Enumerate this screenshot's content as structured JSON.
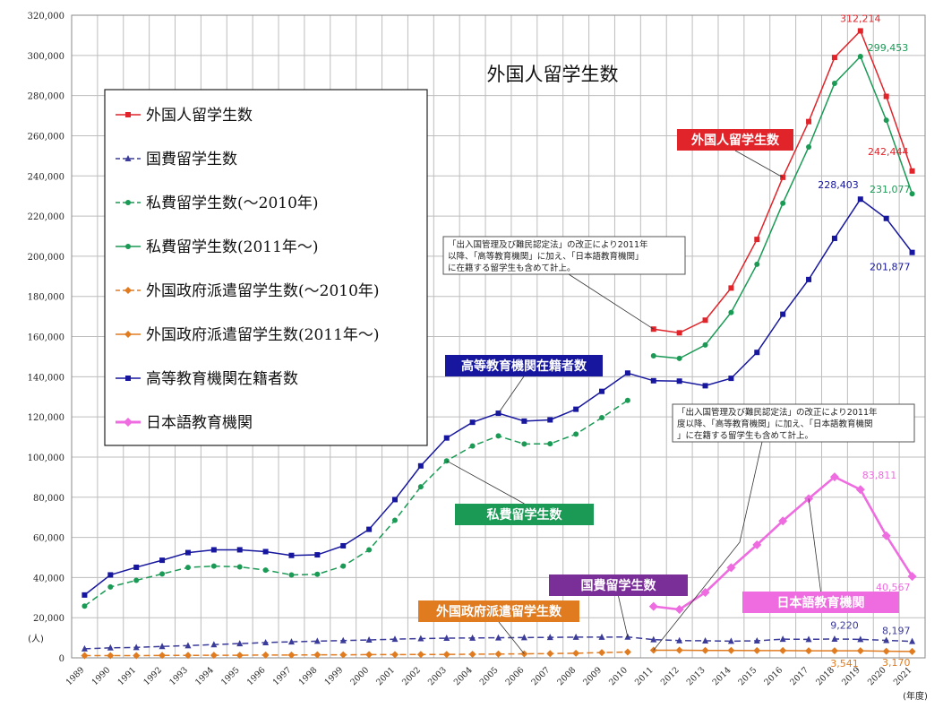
{
  "chart_data": {
    "type": "line",
    "title": "外国人留学生数",
    "y_unit_label": "(人)",
    "x_unit_label": "(年度)",
    "ylim": [
      0,
      320000
    ],
    "yticks": [
      0,
      20000,
      40000,
      60000,
      80000,
      100000,
      120000,
      140000,
      160000,
      180000,
      200000,
      220000,
      240000,
      260000,
      280000,
      300000,
      320000
    ],
    "ytick_labels": [
      "0",
      "20,000",
      "40,000",
      "60,000",
      "80,000",
      "100,000",
      "120,000",
      "140,000",
      "160,000",
      "180,000",
      "200,000",
      "220,000",
      "240,000",
      "260,000",
      "280,000",
      "300,000",
      "320,000"
    ],
    "categories": [
      "1989",
      "1990",
      "1991",
      "1992",
      "1993",
      "1994",
      "1995",
      "1996",
      "1997",
      "1998",
      "1999",
      "2000",
      "2001",
      "2002",
      "2003",
      "2004",
      "2005",
      "2006",
      "2007",
      "2008",
      "2009",
      "2010",
      "2011",
      "2012",
      "2013",
      "2014",
      "2015",
      "2016",
      "2017",
      "2018",
      "2019",
      "2020",
      "2021"
    ],
    "grid": true,
    "legend_position": "upper-left",
    "series": [
      {
        "name": "外国人留学生数",
        "color": "#e0242a",
        "dash": "solid",
        "marker": "square",
        "values": [
          null,
          null,
          null,
          null,
          null,
          null,
          null,
          null,
          null,
          null,
          null,
          null,
          null,
          null,
          null,
          null,
          null,
          null,
          null,
          null,
          null,
          null,
          163697,
          161848,
          168145,
          184155,
          208379,
          239287,
          267042,
          298980,
          312214,
          279597,
          242444
        ]
      },
      {
        "name": "国費留学生数",
        "color": "#3b3b9a",
        "dash": "dash",
        "marker": "triangle",
        "values": [
          4500,
          5000,
          5200,
          5700,
          6100,
          6600,
          7100,
          7600,
          8000,
          8300,
          8600,
          8900,
          9300,
          9600,
          9800,
          9900,
          10000,
          10100,
          10200,
          10300,
          10300,
          10400,
          9100,
          8600,
          8500,
          8300,
          8500,
          9300,
          9200,
          9400,
          9220,
          8700,
          8197
        ]
      },
      {
        "name": "私費留学生数(〜2010年)",
        "color": "#1a9a55",
        "dash": "dash",
        "marker": "circle",
        "values": [
          25800,
          35300,
          38600,
          41800,
          45000,
          45700,
          45300,
          43700,
          41300,
          41600,
          45700,
          53800,
          68500,
          85200,
          98100,
          105500,
          110500,
          106500,
          106600,
          111400,
          119600,
          128200,
          null,
          null,
          null,
          null,
          null,
          null,
          null,
          null,
          null,
          null,
          null
        ]
      },
      {
        "name": "私費留学生数(2011年〜)",
        "color": "#1a9a55",
        "dash": "solid",
        "marker": "circle",
        "values": [
          null,
          null,
          null,
          null,
          null,
          null,
          null,
          null,
          null,
          null,
          null,
          null,
          null,
          null,
          null,
          null,
          null,
          null,
          null,
          null,
          null,
          null,
          150400,
          149100,
          155800,
          172000,
          196000,
          226400,
          254400,
          286100,
          299453,
          267700,
          231077
        ]
      },
      {
        "name": "外国政府派遣留学生数(〜2010年)",
        "color": "#e07b20",
        "dash": "dash",
        "marker": "diamond",
        "values": [
          1100,
          1100,
          1100,
          1200,
          1200,
          1300,
          1300,
          1400,
          1400,
          1500,
          1500,
          1600,
          1600,
          1700,
          1700,
          1800,
          1900,
          2000,
          2100,
          2300,
          2600,
          2900,
          null,
          null,
          null,
          null,
          null,
          null,
          null,
          null,
          null,
          null,
          null
        ]
      },
      {
        "name": "外国政府派遣留学生数(2011年〜)",
        "color": "#e07b20",
        "dash": "solid",
        "marker": "diamond",
        "values": [
          null,
          null,
          null,
          null,
          null,
          null,
          null,
          null,
          null,
          null,
          null,
          null,
          null,
          null,
          null,
          null,
          null,
          null,
          null,
          null,
          null,
          null,
          3800,
          3800,
          3700,
          3700,
          3600,
          3600,
          3500,
          3500,
          3541,
          3300,
          3170
        ]
      },
      {
        "name": "高等教育機関在籍者数",
        "color": "#16169e",
        "dash": "solid",
        "marker": "square",
        "values": [
          31300,
          41300,
          45100,
          48600,
          52400,
          53800,
          53800,
          52900,
          51000,
          51300,
          55800,
          64000,
          78800,
          95600,
          109500,
          117300,
          121800,
          117900,
          118500,
          123800,
          132700,
          141800,
          138000,
          137800,
          135500,
          139200,
          152100,
          171100,
          188400,
          208900,
          228403,
          218800,
          201877
        ]
      },
      {
        "name": "日本語教育機関",
        "color": "#ee6be0",
        "dash": "solid",
        "marker": "diamond",
        "values": [
          null,
          null,
          null,
          null,
          null,
          null,
          null,
          null,
          null,
          null,
          null,
          null,
          null,
          null,
          null,
          null,
          null,
          null,
          null,
          null,
          null,
          null,
          25600,
          24100,
          32600,
          44900,
          56300,
          68200,
          79300,
          90100,
          83811,
          60800,
          40567
        ]
      }
    ],
    "data_labels": [
      {
        "series": "外国人留学生数",
        "year": "2019",
        "text": "312,214"
      },
      {
        "series": "外国人留学生数",
        "year": "2021",
        "text": "242,444"
      },
      {
        "series": "私費留学生数(2011年〜)",
        "year": "2019",
        "text": "299,453"
      },
      {
        "series": "私費留学生数(2011年〜)",
        "year": "2021",
        "text": "231,077"
      },
      {
        "series": "高等教育機関在籍者数",
        "year": "2019",
        "text": "228,403"
      },
      {
        "series": "高等教育機関在籍者数",
        "year": "2021",
        "text": "201,877"
      },
      {
        "series": "日本語教育機関",
        "year": "2019",
        "text": "83,811"
      },
      {
        "series": "日本語教育機関",
        "year": "2021",
        "text": "40,567"
      },
      {
        "series": "国費留学生数",
        "year": "2019",
        "text": "9,220"
      },
      {
        "series": "国費留学生数",
        "year": "2021",
        "text": "8,197"
      },
      {
        "series": "外国政府派遣留学生数(2011年〜)",
        "year": "2019",
        "text": "3,541"
      },
      {
        "series": "外国政府派遣留学生数(2011年〜)",
        "year": "2021",
        "text": "3,170"
      }
    ],
    "callouts": [
      {
        "text": "外国人留学生数",
        "color": "#e0242a",
        "target_series": "外国人留学生数",
        "target_year": "2016"
      },
      {
        "text": "高等教育機関在籍者数",
        "color": "#16169e",
        "target_series": "高等教育機関在籍者数",
        "target_year": "2005"
      },
      {
        "text": "私費留学生数",
        "color": "#1a9a55",
        "target_series": "私費留学生数(〜2010年)",
        "target_year": "2003"
      },
      {
        "text": "国費留学生数",
        "color": "#7a2e98",
        "target_series": "国費留学生数",
        "target_year": "2010"
      },
      {
        "text": "外国政府派遣留学生数",
        "color": "#e07b20",
        "target_series": "外国政府派遣留学生数(〜2010年)",
        "target_year": "2006"
      },
      {
        "text": "日本語教育機関",
        "color": "#ee6be0",
        "target_series": "日本語教育機関",
        "target_year": "2017"
      }
    ],
    "notes": [
      {
        "lines": [
          "「出入国管理及び難民認定法」の改正により2011年",
          "以降、「高等教育機関」に加え、「日本語教育機関」",
          "に在籍する留学生も含めて計上。"
        ]
      },
      {
        "lines": [
          "「出入国管理及び難民認定法」の改正により2011年",
          "度以降、「高等教育機関」に加え、「日本語教育機関",
          "」に在籍する留学生も含めて計上。"
        ]
      }
    ]
  }
}
